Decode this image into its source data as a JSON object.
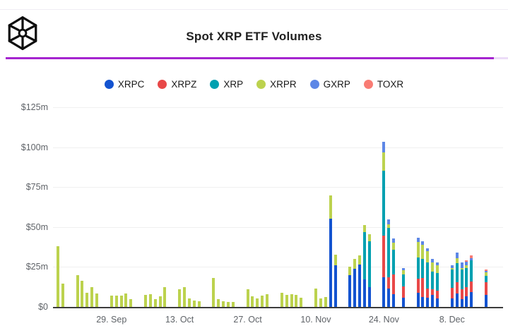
{
  "header": {
    "title": "Spot XRP ETF Volumes",
    "logo_icon": "cube-wireframe-logo"
  },
  "accent_line": {
    "color": "#a524cf",
    "track_color": "#ecdcf8"
  },
  "chart_data": {
    "type": "bar",
    "subtype": "stacked-daily-bars",
    "title": "Spot XRP ETF Volumes",
    "unit": "USD millions",
    "ylim": [
      0,
      125
    ],
    "grid": "horizontal",
    "legend_position": "top-center",
    "y_ticks": [
      {
        "label": "$125m",
        "value": 125
      },
      {
        "label": "$100m",
        "value": 100
      },
      {
        "label": "$75m",
        "value": 75
      },
      {
        "label": "$50m",
        "value": 50
      },
      {
        "label": "$25m",
        "value": 25
      },
      {
        "label": "$0",
        "value": 0
      }
    ],
    "x_ticks": [
      {
        "label": "29. Sep",
        "day": 11
      },
      {
        "label": "13. Oct",
        "day": 25
      },
      {
        "label": "27. Oct",
        "day": 39
      },
      {
        "label": "10. Nov",
        "day": 53
      },
      {
        "label": "24. Nov",
        "day": 67
      },
      {
        "label": "8. Dec",
        "day": 81
      }
    ],
    "series": [
      {
        "name": "XRPC",
        "color": "#1353d0"
      },
      {
        "name": "XRPZ",
        "color": "#e84848"
      },
      {
        "name": "XRP",
        "color": "#00a0b0"
      },
      {
        "name": "XRPR",
        "color": "#bcd24e"
      },
      {
        "name": "GXRP",
        "color": "#5d87e6"
      },
      {
        "name": "TOXR",
        "color": "#f97c74"
      }
    ],
    "bars": [
      {
        "date": "18. Sep",
        "day": 0,
        "values": {
          "XRPR": 38
        }
      },
      {
        "date": "19. Sep",
        "day": 1,
        "values": {
          "XRPR": 14.5
        }
      },
      {
        "date": "22. Sep",
        "day": 4,
        "values": {
          "XRPR": 20
        }
      },
      {
        "date": "23. Sep",
        "day": 5,
        "values": {
          "XRPR": 16.5
        }
      },
      {
        "date": "24. Sep",
        "day": 6,
        "values": {
          "XRPR": 9
        }
      },
      {
        "date": "25. Sep",
        "day": 7,
        "values": {
          "XRPR": 12.5
        }
      },
      {
        "date": "26. Sep",
        "day": 8,
        "values": {
          "XRPR": 8.5
        }
      },
      {
        "date": "29. Sep",
        "day": 11,
        "values": {
          "XRPR": 7
        }
      },
      {
        "date": "30. Sep",
        "day": 12,
        "values": {
          "XRPR": 7
        }
      },
      {
        "date": "1. Oct",
        "day": 13,
        "values": {
          "XRPR": 7
        }
      },
      {
        "date": "2. Oct",
        "day": 14,
        "values": {
          "XRPR": 8.5
        }
      },
      {
        "date": "3. Oct",
        "day": 15,
        "values": {
          "XRPR": 5
        }
      },
      {
        "date": "6. Oct",
        "day": 18,
        "values": {
          "XRPR": 7.5
        }
      },
      {
        "date": "7. Oct",
        "day": 19,
        "values": {
          "XRPR": 8
        }
      },
      {
        "date": "8. Oct",
        "day": 20,
        "values": {
          "XRPR": 5
        }
      },
      {
        "date": "9. Oct",
        "day": 21,
        "values": {
          "XRPR": 6.5
        }
      },
      {
        "date": "10. Oct",
        "day": 22,
        "values": {
          "XRPR": 12.5
        }
      },
      {
        "date": "13. Oct",
        "day": 25,
        "values": {
          "XRPR": 11
        }
      },
      {
        "date": "14. Oct",
        "day": 26,
        "values": {
          "XRPR": 12.5
        }
      },
      {
        "date": "15. Oct",
        "day": 27,
        "values": {
          "XRPR": 5.5
        }
      },
      {
        "date": "16. Oct",
        "day": 28,
        "values": {
          "XRPR": 4
        }
      },
      {
        "date": "17. Oct",
        "day": 29,
        "values": {
          "XRPR": 3.5
        }
      },
      {
        "date": "20. Oct",
        "day": 32,
        "values": {
          "XRPR": 18
        }
      },
      {
        "date": "21. Oct",
        "day": 33,
        "values": {
          "XRPR": 5
        }
      },
      {
        "date": "22. Oct",
        "day": 34,
        "values": {
          "XRPR": 3.5
        }
      },
      {
        "date": "23. Oct",
        "day": 35,
        "values": {
          "XRPR": 3
        }
      },
      {
        "date": "24. Oct",
        "day": 36,
        "values": {
          "XRPR": 3.2
        }
      },
      {
        "date": "27. Oct",
        "day": 39,
        "values": {
          "XRPR": 11
        }
      },
      {
        "date": "28. Oct",
        "day": 40,
        "values": {
          "XRPR": 6.5
        }
      },
      {
        "date": "29. Oct",
        "day": 41,
        "values": {
          "XRPR": 5.5
        }
      },
      {
        "date": "30. Oct",
        "day": 42,
        "values": {
          "XRPR": 7
        }
      },
      {
        "date": "31. Oct",
        "day": 43,
        "values": {
          "XRPR": 8
        }
      },
      {
        "date": "3. Nov",
        "day": 46,
        "values": {
          "XRPR": 8.8
        }
      },
      {
        "date": "4. Nov",
        "day": 47,
        "values": {
          "XRPR": 7.3
        }
      },
      {
        "date": "5. Nov",
        "day": 48,
        "values": {
          "XRPR": 8
        }
      },
      {
        "date": "6. Nov",
        "day": 49,
        "values": {
          "XRPR": 7.3
        }
      },
      {
        "date": "7. Nov",
        "day": 50,
        "values": {
          "XRPR": 5.8
        }
      },
      {
        "date": "10. Nov",
        "day": 53,
        "values": {
          "XRPR": 11.7
        }
      },
      {
        "date": "11. Nov",
        "day": 54,
        "values": {
          "XRPR": 5.1
        }
      },
      {
        "date": "12. Nov",
        "day": 55,
        "values": {
          "XRPR": 6.3
        }
      },
      {
        "date": "13. Nov",
        "day": 56,
        "values": {
          "XRPC": 55,
          "XRPR": 15
        }
      },
      {
        "date": "14. Nov",
        "day": 57,
        "values": {
          "XRPC": 26,
          "XRPR": 6.5
        }
      },
      {
        "date": "17. Nov",
        "day": 60,
        "values": {
          "XRPC": 19.7,
          "XRPR": 5.6
        }
      },
      {
        "date": "18. Nov",
        "day": 61,
        "values": {
          "XRPC": 24,
          "XRPR": 6
        }
      },
      {
        "date": "19. Nov",
        "day": 62,
        "values": {
          "XRPC": 26.3,
          "XRPR": 5.9
        }
      },
      {
        "date": "20. Nov",
        "day": 63,
        "values": {
          "XRPC": 17.1,
          "XRP": 29.7,
          "XRPR": 4.4
        }
      },
      {
        "date": "21. Nov",
        "day": 64,
        "values": {
          "XRPC": 12.4,
          "XRP": 28.5,
          "XRPR": 4.4
        }
      },
      {
        "date": "24. Nov",
        "day": 67,
        "values": {
          "XRPC": 18.6,
          "XRPZ": 26.2,
          "XRP": 40.4,
          "XRPR": 11.7,
          "GXRP": 6.3
        }
      },
      {
        "date": "25. Nov",
        "day": 68,
        "values": {
          "XRPC": 11.7,
          "XRPZ": 7,
          "XRP": 30.7,
          "XRPR": 2.3,
          "GXRP": 2.9
        }
      },
      {
        "date": "26. Nov",
        "day": 69,
        "values": {
          "XRPC": 8,
          "XRPZ": 12.4,
          "XRP": 15.3,
          "XRPR": 4.4,
          "GXRP": 2.9
        }
      },
      {
        "date": "28. Nov",
        "day": 71,
        "values": {
          "XRPC": 5.8,
          "XRPZ": 6.9,
          "XRP": 7.8,
          "XRPR": 2.5,
          "GXRP": 1.5
        }
      },
      {
        "date": "1. Dec",
        "day": 74,
        "values": {
          "XRPC": 8.8,
          "XRPZ": 8.8,
          "XRP": 13.2,
          "XRPR": 9.8,
          "GXRP": 2.9
        }
      },
      {
        "date": "2. Dec",
        "day": 75,
        "values": {
          "XRPC": 6.3,
          "XRPZ": 11.7,
          "XRP": 12,
          "XRPR": 8.8,
          "GXRP": 2.2
        }
      },
      {
        "date": "3. Dec",
        "day": 76,
        "values": {
          "XRPC": 5.8,
          "XRPZ": 5.8,
          "XRP": 16.1,
          "XRPR": 7.3,
          "GXRP": 1.5
        }
      },
      {
        "date": "4. Dec",
        "day": 77,
        "values": {
          "XRPC": 7.7,
          "XRPZ": 3.2,
          "XRP": 11,
          "XRPR": 5.8,
          "GXRP": 2.2
        }
      },
      {
        "date": "5. Dec",
        "day": 78,
        "values": {
          "XRPC": 5.1,
          "XRPZ": 5.1,
          "XRP": 11,
          "XRPR": 5.1,
          "GXRP": 1.5
        }
      },
      {
        "date": "8. Dec",
        "day": 81,
        "values": {
          "XRPC": 5.1,
          "XRPZ": 6.9,
          "XRP": 11.4,
          "XRPR": 0.8,
          "GXRP": 1.9
        }
      },
      {
        "date": "9. Dec",
        "day": 82,
        "values": {
          "XRPC": 8.3,
          "XRPZ": 7,
          "XRP": 12,
          "XRPR": 3.4,
          "GXRP": 3.2
        }
      },
      {
        "date": "10. Dec",
        "day": 83,
        "values": {
          "XRPC": 4.8,
          "XRPZ": 6.1,
          "XRP": 12.4,
          "XRPR": 0.8,
          "GXRP": 3.7
        }
      },
      {
        "date": "11. Dec",
        "day": 84,
        "values": {
          "XRPC": 6.6,
          "XRPZ": 5.8,
          "XRP": 11.7,
          "XRPR": 1.8,
          "GXRP": 2.4,
          "TOXR": 1
        }
      },
      {
        "date": "12. Dec",
        "day": 85,
        "values": {
          "XRPC": 9.5,
          "XRPZ": 6.6,
          "XRP": 13.2,
          "GXRP": 1.3,
          "TOXR": 1.7
        }
      },
      {
        "date": "15. Dec",
        "day": 88,
        "values": {
          "XRPC": 7.3,
          "XRPZ": 8,
          "XRP": 4,
          "XRPR": 2.3,
          "GXRP": 0.8,
          "TOXR": 1
        }
      }
    ]
  }
}
